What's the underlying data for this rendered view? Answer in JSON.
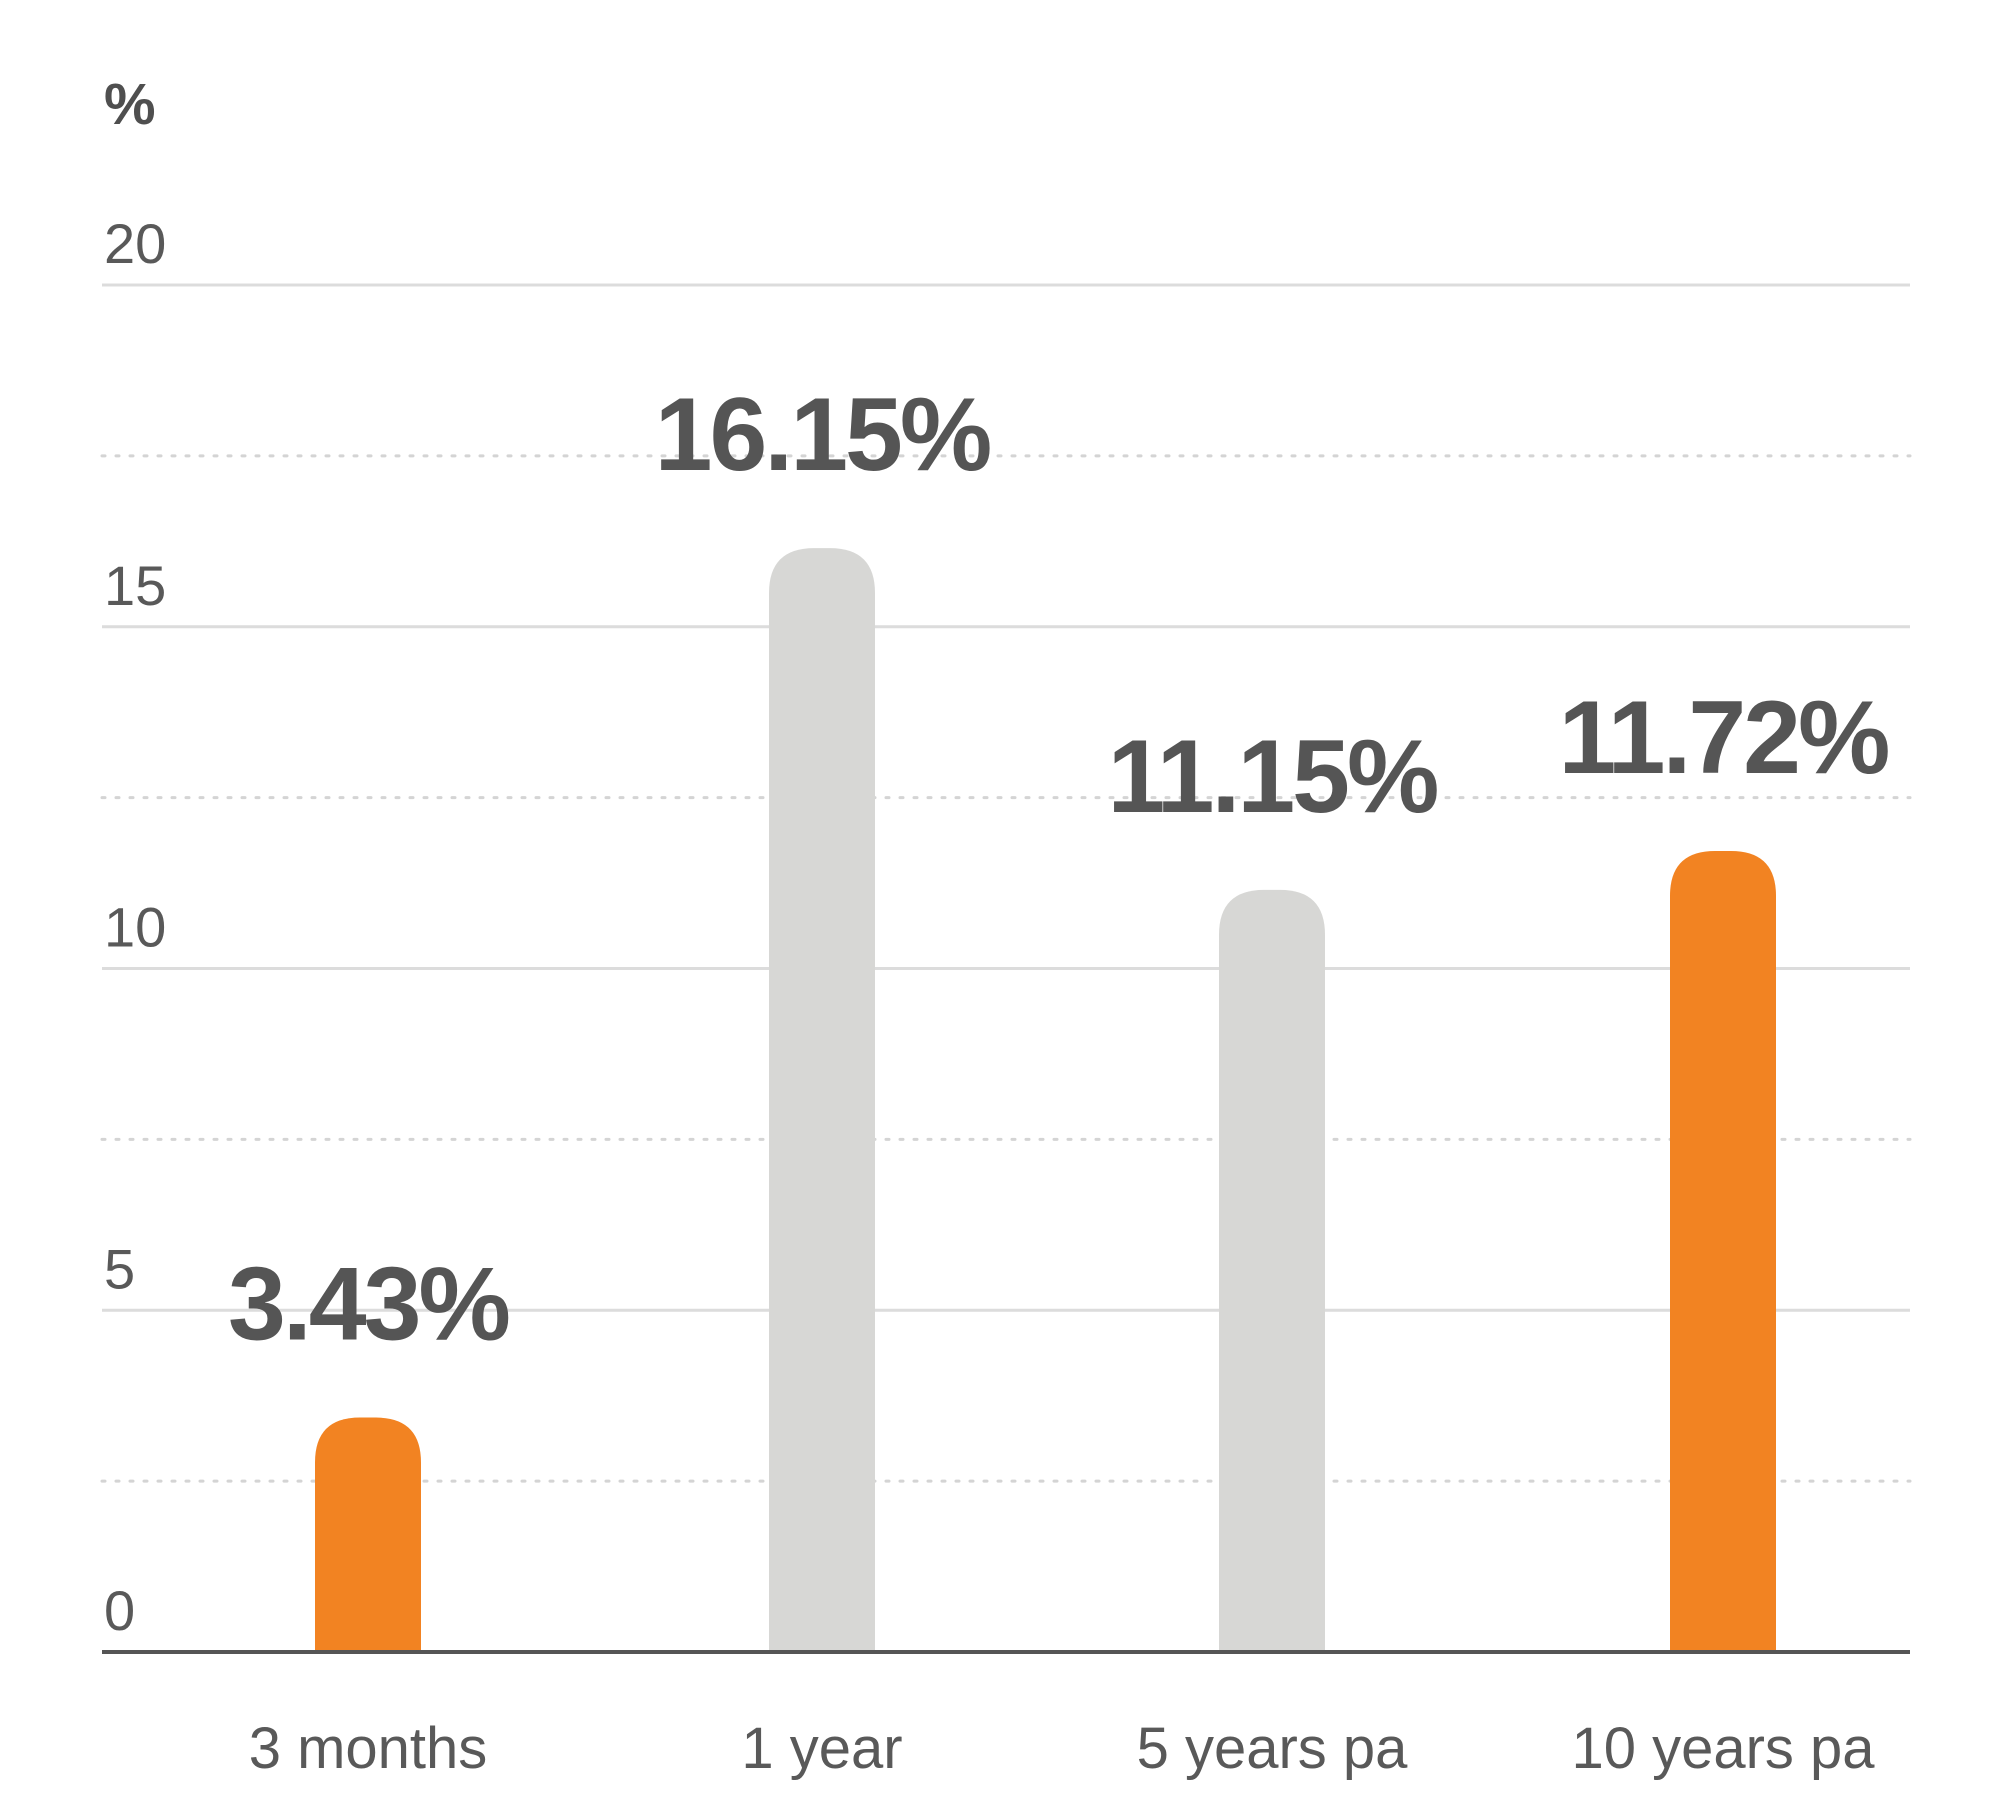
{
  "chart_data": {
    "type": "bar",
    "unit_label": "%",
    "categories": [
      "3 months",
      "1 year",
      "5 years pa",
      "10 years pa"
    ],
    "values": [
      3.43,
      16.15,
      11.15,
      11.72
    ],
    "value_labels": [
      "3.43%",
      "16.15%",
      "11.15%",
      "11.72%"
    ],
    "ylim": [
      0,
      20
    ],
    "yticks": [
      0,
      5,
      10,
      15,
      20
    ],
    "grid": true,
    "minor_grid": true,
    "colors": [
      "#f28322",
      "#d7d7d5",
      "#d7d7d5",
      "#f28322"
    ],
    "title": "",
    "xlabel": "",
    "ylabel": ""
  }
}
